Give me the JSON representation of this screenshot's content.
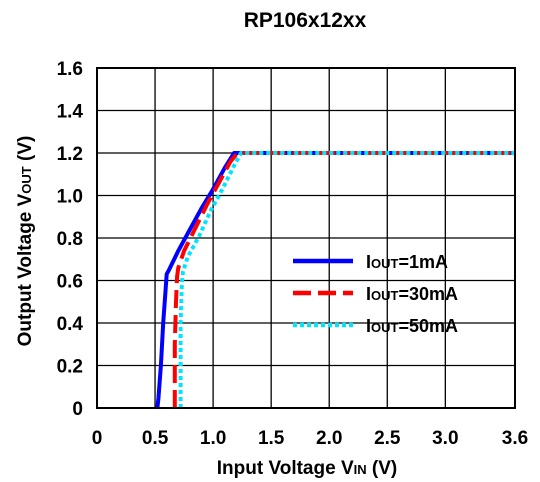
{
  "chart_data": {
    "type": "line",
    "title": "RP106x12xx",
    "xlabel": {
      "main": "Input Voltage V",
      "sub": "IN",
      "unit": " (V)"
    },
    "ylabel": {
      "main": "Output Voltage V",
      "sub": "OUT",
      "unit": " (V)"
    },
    "xlim": [
      0,
      3.6
    ],
    "ylim": [
      0,
      1.6
    ],
    "xticks": [
      0,
      0.5,
      1.0,
      1.5,
      2.0,
      2.5,
      3.0,
      3.6
    ],
    "xtick_labels": [
      "0",
      "0.5",
      "1.0",
      "1.5",
      "2.0",
      "2.5",
      "3.0",
      "3.6"
    ],
    "yticks": [
      0,
      0.2,
      0.4,
      0.6,
      0.8,
      1.0,
      1.2,
      1.4,
      1.6
    ],
    "ytick_labels": [
      "0",
      "0.2",
      "0.4",
      "0.6",
      "0.8",
      "1.0",
      "1.2",
      "1.4",
      "1.6"
    ],
    "grid": true,
    "legend": "center-right",
    "series": [
      {
        "legend_main": "I",
        "legend_sub": "OUT",
        "legend_rest": "=1mA",
        "color": "#0000ff",
        "style": "solid",
        "x": [
          0.52,
          0.53,
          0.55,
          0.57,
          0.59,
          0.6,
          0.62,
          0.7,
          0.8,
          0.9,
          1.0,
          1.1,
          1.18,
          1.2,
          2.0,
          3.0,
          3.6
        ],
        "y": [
          0,
          0.05,
          0.2,
          0.4,
          0.55,
          0.63,
          0.65,
          0.74,
          0.84,
          0.94,
          1.03,
          1.13,
          1.2,
          1.2,
          1.2,
          1.2,
          1.2
        ]
      },
      {
        "legend_main": "I",
        "legend_sub": "OUT",
        "legend_rest": "=30mA",
        "color": "#ff0000",
        "style": "dash",
        "x": [
          0.67,
          0.67,
          0.68,
          0.69,
          0.7,
          0.75,
          0.85,
          0.95,
          1.05,
          1.15,
          1.21,
          2.0,
          3.0,
          3.6
        ],
        "y": [
          0,
          0.3,
          0.5,
          0.62,
          0.66,
          0.74,
          0.85,
          0.96,
          1.06,
          1.16,
          1.2,
          1.2,
          1.2,
          1.2
        ]
      },
      {
        "legend_main": "I",
        "legend_sub": "OUT",
        "legend_rest": "=50mA",
        "color": "#00e5ff",
        "style": "dot",
        "x": [
          0.72,
          0.72,
          0.73,
          0.74,
          0.78,
          0.88,
          0.98,
          1.08,
          1.18,
          1.24,
          2.0,
          3.0,
          3.6
        ],
        "y": [
          0,
          0.4,
          0.58,
          0.64,
          0.71,
          0.81,
          0.93,
          1.03,
          1.14,
          1.2,
          1.2,
          1.2,
          1.2
        ]
      }
    ]
  }
}
